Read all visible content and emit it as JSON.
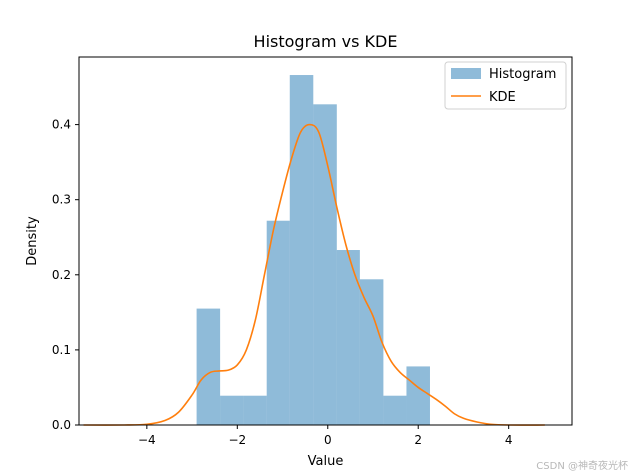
{
  "chart_data": {
    "type": "bar",
    "title": "Histogram vs KDE",
    "xlabel": "Value",
    "ylabel": "Density",
    "xlim": [
      -5.5,
      5.4
    ],
    "ylim": [
      0,
      0.49
    ],
    "xticks": [
      -4,
      -2,
      0,
      2,
      4
    ],
    "xtick_labels": [
      "−4",
      "−2",
      "0",
      "2",
      "4"
    ],
    "yticks": [
      0.0,
      0.1,
      0.2,
      0.3,
      0.4
    ],
    "ytick_labels": [
      "0.0",
      "0.1",
      "0.2",
      "0.3",
      "0.4"
    ],
    "grid": false,
    "legend_position": "top-right",
    "histogram": {
      "name": "Histogram",
      "color": "#1f77b4",
      "opacity": 0.5,
      "bins": [
        {
          "x0": -2.9,
          "x1": -2.38,
          "value": 0.155
        },
        {
          "x0": -2.38,
          "x1": -1.87,
          "value": 0.039
        },
        {
          "x0": -1.87,
          "x1": -1.35,
          "value": 0.039
        },
        {
          "x0": -1.35,
          "x1": -0.84,
          "value": 0.272
        },
        {
          "x0": -0.84,
          "x1": -0.32,
          "value": 0.466
        },
        {
          "x0": -0.32,
          "x1": 0.2,
          "value": 0.427
        },
        {
          "x0": 0.2,
          "x1": 0.71,
          "value": 0.233
        },
        {
          "x0": 0.71,
          "x1": 1.23,
          "value": 0.194
        },
        {
          "x0": 1.23,
          "x1": 1.74,
          "value": 0.039
        },
        {
          "x0": 1.74,
          "x1": 2.26,
          "value": 0.078
        }
      ]
    },
    "kde": {
      "name": "KDE",
      "color": "#ff7f0e",
      "x": [
        -5.4,
        -4.5,
        -4.0,
        -3.6,
        -3.3,
        -3.0,
        -2.8,
        -2.6,
        -2.4,
        -2.2,
        -2.0,
        -1.8,
        -1.6,
        -1.4,
        -1.2,
        -1.0,
        -0.8,
        -0.6,
        -0.4,
        -0.2,
        0.0,
        0.2,
        0.4,
        0.6,
        0.8,
        1.0,
        1.2,
        1.4,
        1.6,
        1.8,
        2.0,
        2.2,
        2.4,
        2.6,
        2.8,
        3.0,
        3.3,
        3.6,
        4.0,
        4.8
      ],
      "y": [
        0.0,
        0.0,
        0.001,
        0.006,
        0.017,
        0.04,
        0.06,
        0.07,
        0.072,
        0.073,
        0.08,
        0.1,
        0.14,
        0.2,
        0.26,
        0.31,
        0.355,
        0.39,
        0.4,
        0.39,
        0.345,
        0.29,
        0.24,
        0.2,
        0.17,
        0.145,
        0.11,
        0.085,
        0.07,
        0.06,
        0.05,
        0.042,
        0.034,
        0.025,
        0.015,
        0.009,
        0.004,
        0.001,
        0.0,
        0.0
      ]
    }
  },
  "watermark": "CSDN @神奇夜光杯"
}
